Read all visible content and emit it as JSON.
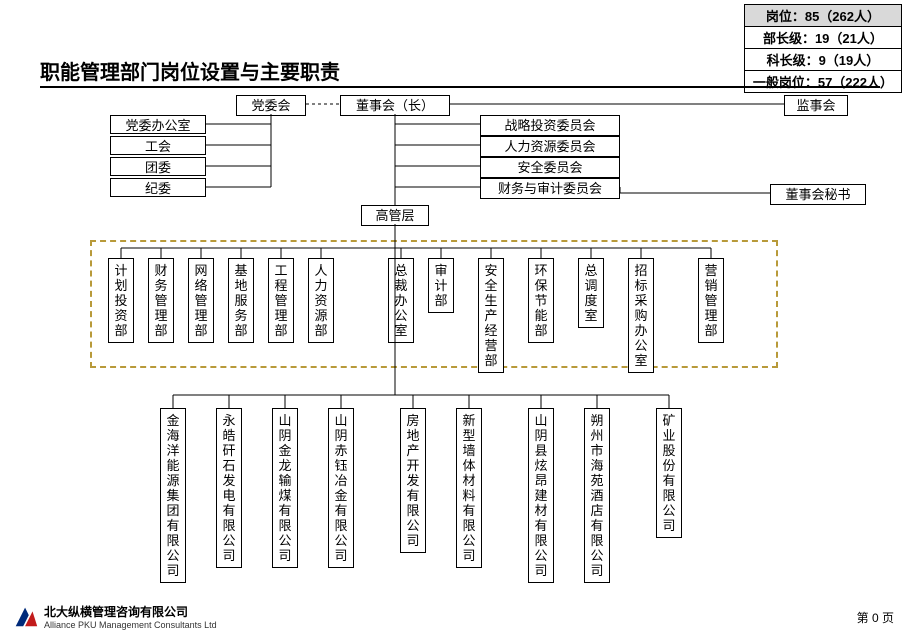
{
  "title": "职能管理部门岗位设置与主要职责",
  "legend": {
    "row1": "岗位：85（262人）",
    "row2": "部长级：19（21人）",
    "row3": "科长级：9（19人）",
    "row4": "一般岗位：57（222人）"
  },
  "top": {
    "party_committee": "党委会",
    "board_chair": "董事会（长）",
    "supervisory": "监事会",
    "board_secretary": "董事会秘书",
    "senior_mgmt": "高管层"
  },
  "left_boxes": {
    "a": "党委办公室",
    "b": "工会",
    "c": "团委",
    "d": "纪委"
  },
  "committees": {
    "c1": "战略投资委员会",
    "c2": "人力资源委员会",
    "c3": "安全委员会",
    "c4": "财务与审计委员会"
  },
  "depts": {
    "d1": "计划投资部",
    "d2": "财务管理部",
    "d3": "网络管理部",
    "d4": "基地服务部",
    "d5": "工程管理部",
    "d6": "人力资源部",
    "d7": "总裁办公室",
    "d8": "审计部",
    "d9": "安全生产经营部",
    "d10": "环保节能部",
    "d11": "总调度室",
    "d12": "招标采购办公室",
    "d13": "营销管理部"
  },
  "subs": {
    "s1": "金海洋能源集团有限公司",
    "s2": "永皓矸石发电有限公司",
    "s3": "山阴金龙输煤有限公司",
    "s4": "山阴赤钰冶金有限公司",
    "s5": "房地产开发有限公司",
    "s6": "新型墙体材料有限公司",
    "s7": "山阴县炫昂建材有限公司",
    "s8": "朔州市海苑酒店有限公司",
    "s9": "矿业股份有限公司"
  },
  "footer": {
    "cn": "北大纵横管理咨询有限公司",
    "en": "Alliance PKU Management Consultants Ltd",
    "page": "第 0 页"
  },
  "style": {
    "dashed_border_color": "#b89a3a",
    "legend_shade": "#d9d9d9"
  }
}
